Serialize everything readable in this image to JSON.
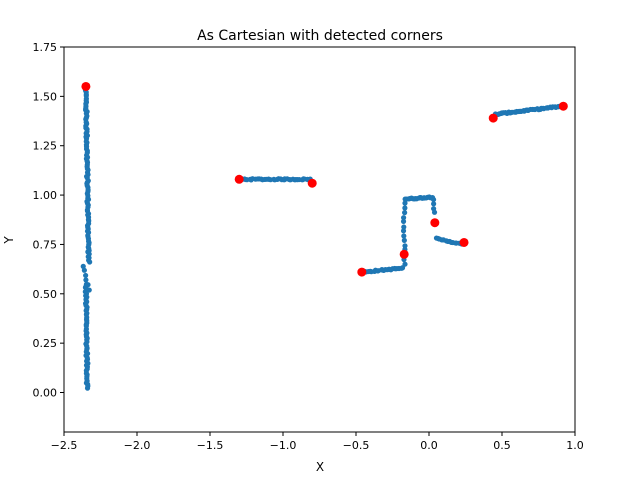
{
  "chart_data": {
    "type": "scatter",
    "title": "As Cartesian with detected corners",
    "xlabel": "X",
    "ylabel": "Y",
    "xlim": [
      -2.5,
      1.0
    ],
    "ylim": [
      -0.2,
      1.75
    ],
    "xticks": [
      -2.5,
      -2.0,
      -1.5,
      -1.0,
      -0.5,
      0.0,
      0.5,
      1.0
    ],
    "xtick_labels": [
      "−2.5",
      "−2.0",
      "−1.5",
      "−1.0",
      "−0.5",
      "0.0",
      "0.5",
      "1.0"
    ],
    "yticks": [
      0.0,
      0.25,
      0.5,
      0.75,
      1.0,
      1.25,
      1.5,
      1.75
    ],
    "ytick_labels": [
      "0.00",
      "0.25",
      "0.50",
      "0.75",
      "1.00",
      "1.25",
      "1.50",
      "1.75"
    ],
    "grid": false,
    "series": [
      {
        "color": "#1f77b4",
        "marker": "circle-small",
        "segments": [
          {
            "from": [
              -2.37,
              0.64
            ],
            "to": [
              -2.33,
              0.52
            ],
            "n": 6
          },
          {
            "from": [
              -2.35,
              0.55
            ],
            "to": [
              -2.34,
              0.02
            ],
            "n": 55
          },
          {
            "from": [
              -2.35,
              1.54
            ],
            "to": [
              -2.33,
              0.66
            ],
            "n": 90
          },
          {
            "from": [
              -1.29,
              1.08
            ],
            "to": [
              -0.81,
              1.08
            ],
            "n": 40
          },
          {
            "from": [
              -0.46,
              0.61
            ],
            "to": [
              -0.18,
              0.63
            ],
            "n": 25
          },
          {
            "from": [
              -0.17,
              0.65
            ],
            "to": [
              -0.17,
              0.96
            ],
            "n": 14
          },
          {
            "from": [
              -0.16,
              0.98
            ],
            "to": [
              0.02,
              0.99
            ],
            "n": 20
          },
          {
            "from": [
              0.03,
              0.98
            ],
            "to": [
              0.04,
              0.91
            ],
            "n": 4
          },
          {
            "from": [
              0.05,
              0.78
            ],
            "to": [
              0.23,
              0.75
            ],
            "n": 15
          },
          {
            "from": [
              0.46,
              1.41
            ],
            "to": [
              0.91,
              1.45
            ],
            "n": 45
          }
        ]
      },
      {
        "color": "#ff0000",
        "marker": "circle-large",
        "points": [
          [
            -2.35,
            1.55
          ],
          [
            -1.3,
            1.08
          ],
          [
            -0.8,
            1.06
          ],
          [
            -0.46,
            0.61
          ],
          [
            -0.17,
            0.7
          ],
          [
            0.04,
            0.86
          ],
          [
            0.24,
            0.76
          ],
          [
            0.44,
            1.39
          ],
          [
            0.92,
            1.45
          ]
        ]
      }
    ]
  }
}
